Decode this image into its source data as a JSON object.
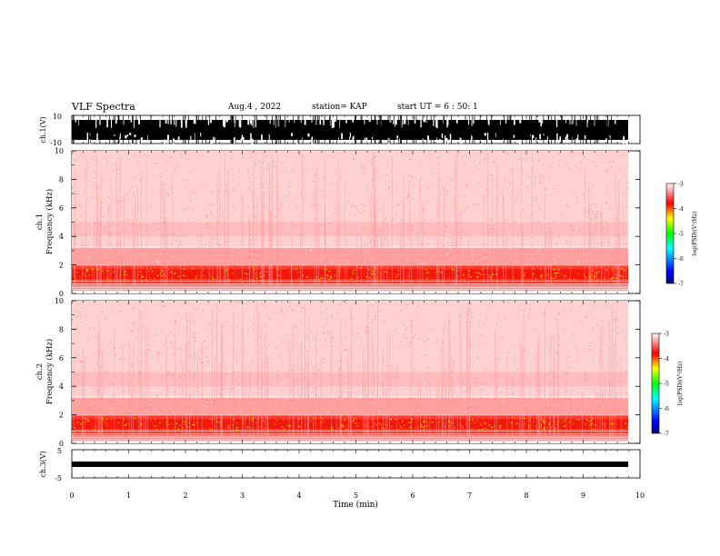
{
  "header": {
    "title": "VLF Spectra",
    "date": "Aug.4 , 2022",
    "station": "station= KAP",
    "start": "start UT = 6 : 50: 1"
  },
  "chart_data": [
    {
      "type": "line",
      "name": "ch1-waveform",
      "ylabel": "ch.1(V)",
      "ylim": [
        -10,
        10
      ],
      "yticks": [
        "10",
        "-10"
      ],
      "xlim": [
        0,
        10
      ],
      "note": "saturated broadband waveform"
    },
    {
      "type": "heatmap",
      "name": "ch1-spectrogram",
      "ylabel": "ch.1\nFrequency (kHz)",
      "ylim": [
        0,
        10
      ],
      "yticks": [
        "0",
        "2",
        "4",
        "6",
        "8",
        "10"
      ],
      "xlim": [
        0,
        9.8
      ],
      "colorbar": {
        "label": "log(PSD)(V²/Hz)",
        "ticks": [
          "-3",
          "-4",
          "-5",
          "-6",
          "-7"
        ],
        "range": [
          -7,
          -3
        ],
        "colors": [
          "#000080",
          "#0000ff",
          "#00ffff",
          "#00ff00",
          "#ffff00",
          "#ff0000",
          "#ffffff"
        ]
      }
    },
    {
      "type": "heatmap",
      "name": "ch2-spectrogram",
      "ylabel": "ch.2\nFrequency (kHz)",
      "ylim": [
        0,
        10
      ],
      "yticks": [
        "0",
        "2",
        "4",
        "6",
        "8",
        "10"
      ],
      "xlim": [
        0,
        9.8
      ],
      "colorbar": {
        "label": "log(PSD)(V²/Hz)",
        "ticks": [
          "-3",
          "-4",
          "-5",
          "-6",
          "-7"
        ],
        "range": [
          -7,
          -3
        ]
      }
    },
    {
      "type": "line",
      "name": "ch3-waveform",
      "ylabel": "ch.3(V)",
      "ylim": [
        -5,
        5
      ],
      "yticks": [
        "5",
        "-5"
      ],
      "xlim": [
        0,
        10
      ],
      "xlabel": "Time (min)",
      "xticks": [
        "0",
        "1",
        "2",
        "3",
        "4",
        "5",
        "6",
        "7",
        "8",
        "9",
        "10"
      ]
    }
  ]
}
